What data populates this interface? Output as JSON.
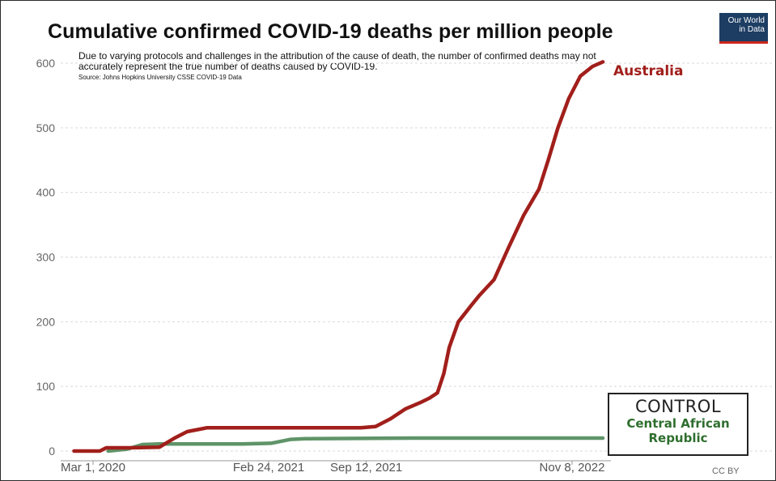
{
  "title": "Cumulative confirmed COVID-19 deaths per million people",
  "logo": {
    "line1": "Our World",
    "line2": "in Data"
  },
  "note": {
    "text": "Due to varying protocols and challenges in the attribution of the cause of death, the number of confirmed deaths may not accurately represent the true number of deaths caused by COVID-19.",
    "source": "Source: Johns Hopkins University CSSE COVID-19 Data"
  },
  "control_box": {
    "heading": "CONTROL",
    "country_line1": "Central African",
    "country_line2": "Republic"
  },
  "license": "CC BY",
  "colors": {
    "australia": "#a11f1b",
    "car": "#5f9468",
    "grid": "#d9d9d9"
  },
  "chart_data": {
    "type": "line",
    "title": "Cumulative confirmed COVID-19 deaths per million people",
    "xlabel": "",
    "ylabel": "",
    "ylim": [
      0,
      600
    ],
    "yticks": [
      0,
      100,
      200,
      300,
      400,
      500,
      600
    ],
    "xlim": [
      "2020-01-22",
      "2023-03-10"
    ],
    "xticks": [
      {
        "date": "2020-03-01",
        "label": "Mar 1, 2020"
      },
      {
        "date": "2021-02-24",
        "label": "Feb 24, 2021"
      },
      {
        "date": "2021-09-12",
        "label": "Sep 12, 2021"
      },
      {
        "date": "2022-11-08",
        "label": "Nov 8, 2022"
      }
    ],
    "grid": true,
    "series": [
      {
        "name": "Australia",
        "color": "#a11f1b",
        "points": [
          [
            "2020-01-22",
            0
          ],
          [
            "2020-03-15",
            0
          ],
          [
            "2020-03-28",
            5
          ],
          [
            "2020-05-15",
            5
          ],
          [
            "2020-07-15",
            6
          ],
          [
            "2020-08-15",
            20
          ],
          [
            "2020-09-10",
            30
          ],
          [
            "2020-10-20",
            36
          ],
          [
            "2021-01-01",
            36
          ],
          [
            "2021-06-01",
            36
          ],
          [
            "2021-09-01",
            36
          ],
          [
            "2021-10-01",
            38
          ],
          [
            "2021-11-01",
            50
          ],
          [
            "2021-12-01",
            65
          ],
          [
            "2022-01-01",
            75
          ],
          [
            "2022-01-20",
            82
          ],
          [
            "2022-02-05",
            90
          ],
          [
            "2022-02-18",
            120
          ],
          [
            "2022-03-01",
            160
          ],
          [
            "2022-03-20",
            200
          ],
          [
            "2022-04-15",
            225
          ],
          [
            "2022-05-01",
            240
          ],
          [
            "2022-06-01",
            265
          ],
          [
            "2022-07-01",
            315
          ],
          [
            "2022-08-01",
            365
          ],
          [
            "2022-09-01",
            405
          ],
          [
            "2022-09-20",
            450
          ],
          [
            "2022-10-10",
            500
          ],
          [
            "2022-11-01",
            545
          ],
          [
            "2022-11-25",
            580
          ],
          [
            "2022-12-20",
            595
          ],
          [
            "2023-01-10",
            602
          ]
        ]
      },
      {
        "name": "Central African Republic",
        "color": "#5f9468",
        "points": [
          [
            "2020-04-01",
            0
          ],
          [
            "2020-05-10",
            3
          ],
          [
            "2020-06-10",
            10
          ],
          [
            "2020-07-15",
            11
          ],
          [
            "2021-01-01",
            11
          ],
          [
            "2021-03-01",
            12
          ],
          [
            "2021-04-10",
            18
          ],
          [
            "2021-05-10",
            19
          ],
          [
            "2021-12-31",
            20
          ],
          [
            "2023-01-10",
            20
          ]
        ]
      }
    ]
  }
}
